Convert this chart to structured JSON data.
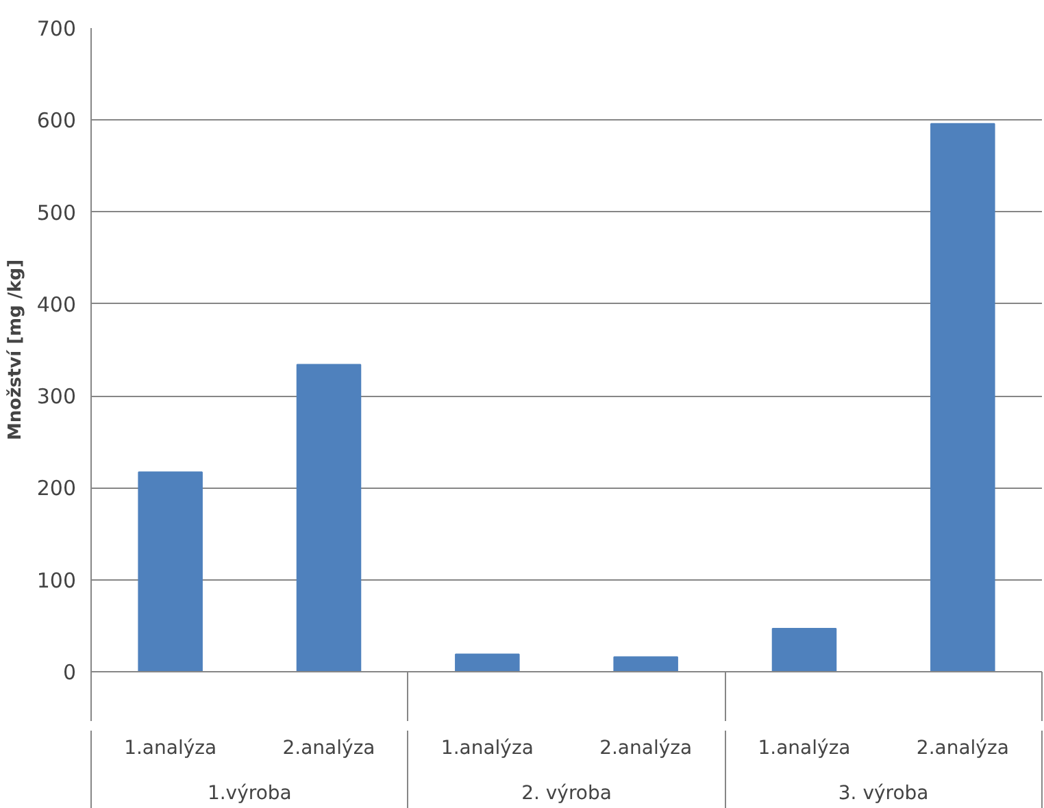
{
  "chart_data": {
    "type": "bar",
    "ylabel": "Množství [mg /kg]",
    "categories": [
      "1.analýza",
      "2.analýza",
      "1.analýza",
      "2.analýza",
      "1.analýza",
      "2.analýza"
    ],
    "values": [
      217,
      334,
      19,
      16,
      47,
      596
    ],
    "color": "#4f81bd",
    "ylim": [
      0,
      700
    ],
    "yticks": [
      0,
      100,
      200,
      300,
      400,
      500,
      600,
      700
    ],
    "grid": "y",
    "annotations": [
      "1.výroba",
      "2. výroba",
      "3. výroba"
    ]
  }
}
